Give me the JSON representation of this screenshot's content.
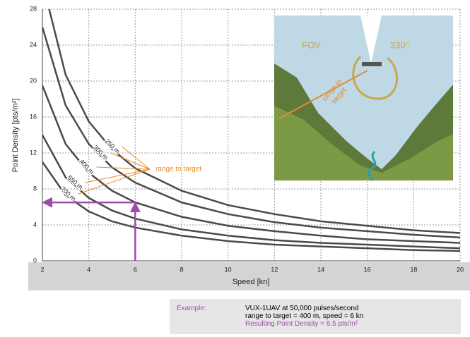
{
  "chart_data": {
    "type": "line",
    "x_label": "Speed [kn]",
    "y_label": "Point Density [pts/m²]",
    "x": [
      2,
      3,
      4,
      5,
      6,
      8,
      10,
      12,
      14,
      16,
      18,
      20
    ],
    "series": [
      {
        "name": "250 m",
        "color": "#4a4a4a",
        "values": [
          31,
          20.7,
          15.5,
          12.4,
          10.3,
          7.8,
          6.2,
          5.2,
          4.4,
          3.9,
          3.4,
          3.1
        ]
      },
      {
        "name": "300 m",
        "color": "#4a4a4a",
        "values": [
          26,
          17.3,
          13,
          10.4,
          8.7,
          6.5,
          5.2,
          4.3,
          3.7,
          3.3,
          2.9,
          2.6
        ]
      },
      {
        "name": "400 m",
        "color": "#4a4a4a",
        "values": [
          19.5,
          13,
          9.8,
          7.8,
          6.5,
          4.9,
          3.9,
          3.3,
          2.8,
          2.4,
          2.2,
          2.0
        ]
      },
      {
        "name": "550 m",
        "color": "#4a4a4a",
        "values": [
          14,
          9.3,
          7,
          5.6,
          4.7,
          3.5,
          2.8,
          2.3,
          2.0,
          1.8,
          1.6,
          1.4
        ]
      },
      {
        "name": "700 m",
        "color": "#4a4a4a",
        "values": [
          11,
          7.3,
          5.5,
          4.4,
          3.7,
          2.8,
          2.2,
          1.8,
          1.6,
          1.4,
          1.2,
          1.1
        ]
      }
    ],
    "xlim": [
      2,
      20
    ],
    "xticks": [
      2,
      4,
      6,
      8,
      10,
      12,
      14,
      16,
      18,
      20
    ],
    "ylim": [
      0,
      28
    ],
    "yticks": [
      0,
      4,
      8,
      12,
      16,
      20,
      24,
      28
    ],
    "grid": true,
    "annotation": "range to target",
    "example_point": {
      "x": 6,
      "y": 6.5,
      "color": "#9a4ea6"
    },
    "inset": {
      "fov": "FOV",
      "angle": "330°",
      "range_lines": [
        "range to",
        "target"
      ]
    }
  },
  "example": {
    "label": "Example:",
    "lines": [
      "VUX-1UAV at 50,000 pulses/second",
      "range to target = 400 m, speed = 6 kn"
    ],
    "result": "Resulting Point Density = 6.5 pts/m²"
  }
}
